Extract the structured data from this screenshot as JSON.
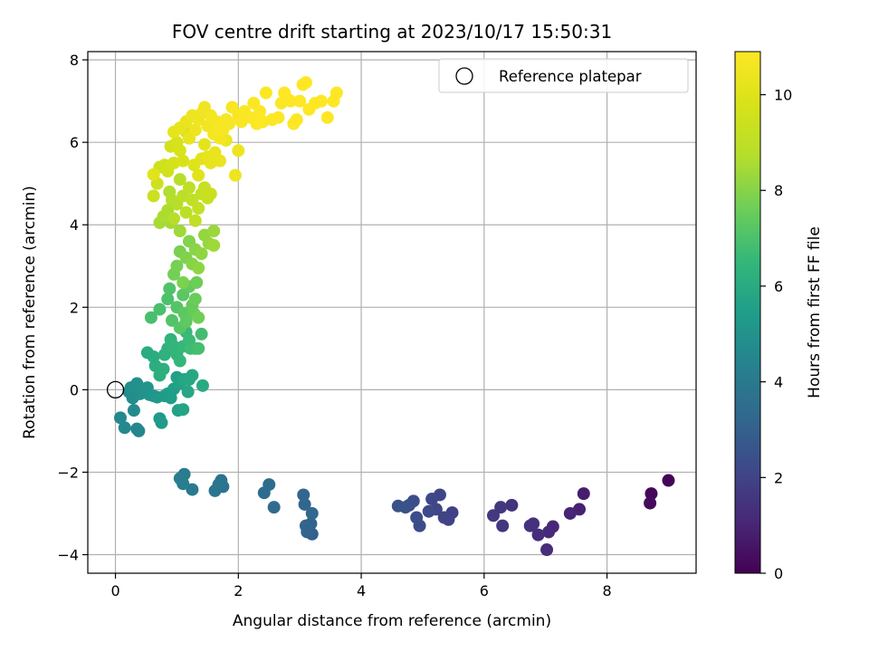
{
  "chart_data": {
    "type": "scatter",
    "title": "FOV centre drift starting at 2023/10/17 15:50:31",
    "xlabel": "Angular distance from reference (arcmin)",
    "ylabel": "Rotation from reference (arcmin)",
    "xlim": [
      -0.45,
      9.45
    ],
    "ylim": [
      -4.45,
      8.2
    ],
    "xticks": [
      0,
      2,
      4,
      6,
      8
    ],
    "yticks": [
      -4,
      -2,
      0,
      2,
      4,
      6,
      8
    ],
    "grid": true,
    "legend": {
      "position": "top-right",
      "entries": [
        "Reference platepar"
      ]
    },
    "reference_point": {
      "x": 0,
      "y": 0,
      "label": "Reference platepar"
    },
    "colorbar": {
      "label": "Hours from first FF file",
      "range": [
        0,
        10.9
      ],
      "ticks": [
        0,
        2,
        4,
        6,
        8,
        10
      ],
      "colormap": "viridis"
    },
    "series": [
      {
        "points": [
          [
            9.0,
            -2.2,
            0.1
          ],
          [
            8.72,
            -2.52,
            0.2
          ],
          [
            8.7,
            -2.75,
            0.3
          ],
          [
            7.62,
            -2.52,
            0.8
          ],
          [
            7.55,
            -2.9,
            0.9
          ],
          [
            7.4,
            -3.0,
            1.0
          ],
          [
            7.12,
            -3.32,
            1.1
          ],
          [
            7.05,
            -3.45,
            1.2
          ],
          [
            7.02,
            -3.88,
            1.25
          ],
          [
            6.88,
            -3.52,
            1.3
          ],
          [
            6.8,
            -3.25,
            1.35
          ],
          [
            6.75,
            -3.3,
            1.4
          ],
          [
            6.45,
            -2.8,
            1.5
          ],
          [
            6.3,
            -3.3,
            1.55
          ],
          [
            6.27,
            -2.85,
            1.6
          ],
          [
            6.15,
            -3.05,
            1.65
          ],
          [
            5.48,
            -2.98,
            1.9
          ],
          [
            5.42,
            -3.15,
            1.95
          ],
          [
            5.35,
            -3.1,
            2.0
          ],
          [
            5.28,
            -2.55,
            2.05
          ],
          [
            5.22,
            -2.9,
            2.1
          ],
          [
            5.15,
            -2.65,
            2.15
          ],
          [
            5.1,
            -2.95,
            2.2
          ],
          [
            4.95,
            -3.3,
            2.25
          ],
          [
            4.9,
            -3.1,
            2.3
          ],
          [
            4.85,
            -2.7,
            2.35
          ],
          [
            4.78,
            -2.8,
            2.4
          ],
          [
            4.72,
            -2.85,
            2.45
          ],
          [
            4.6,
            -2.82,
            2.5
          ],
          [
            3.2,
            -3.5,
            3.0
          ],
          [
            3.18,
            -3.25,
            3.05
          ],
          [
            3.12,
            -3.45,
            3.1
          ],
          [
            3.1,
            -3.3,
            3.15
          ],
          [
            3.08,
            -2.78,
            3.2
          ],
          [
            3.06,
            -2.55,
            3.25
          ],
          [
            3.2,
            -3.0,
            3.3
          ],
          [
            2.58,
            -2.85,
            3.4
          ],
          [
            2.5,
            -2.3,
            3.45
          ],
          [
            2.42,
            -2.5,
            3.5
          ],
          [
            1.75,
            -2.35,
            3.7
          ],
          [
            1.72,
            -2.2,
            3.75
          ],
          [
            1.68,
            -2.3,
            3.8
          ],
          [
            1.62,
            -2.45,
            3.85
          ],
          [
            1.25,
            -2.42,
            4.0
          ],
          [
            1.12,
            -2.05,
            4.05
          ],
          [
            1.08,
            -2.2,
            4.1
          ],
          [
            1.05,
            -2.15,
            4.15
          ],
          [
            1.1,
            -2.28,
            4.2
          ],
          [
            0.38,
            -1.0,
            4.5
          ],
          [
            0.35,
            -0.95,
            4.55
          ],
          [
            0.15,
            -0.92,
            4.6
          ],
          [
            0.08,
            -0.68,
            4.65
          ],
          [
            0.3,
            -0.5,
            4.7
          ],
          [
            0.28,
            -0.2,
            4.75
          ],
          [
            0.22,
            -0.05,
            4.8
          ],
          [
            0.25,
            0.05,
            4.85
          ],
          [
            0.35,
            0.15,
            4.9
          ],
          [
            0.4,
            -0.1,
            4.95
          ],
          [
            0.45,
            0.02,
            5.0
          ],
          [
            0.52,
            0.05,
            5.05
          ],
          [
            0.55,
            -0.12,
            5.1
          ],
          [
            0.62,
            -0.15,
            5.15
          ],
          [
            0.68,
            -0.18,
            5.2
          ],
          [
            0.72,
            -0.7,
            5.25
          ],
          [
            0.75,
            -0.8,
            5.3
          ],
          [
            0.8,
            -0.15,
            5.35
          ],
          [
            0.85,
            -0.1,
            5.4
          ],
          [
            0.9,
            -0.2,
            5.45
          ],
          [
            0.95,
            0.02,
            5.5
          ],
          [
            1.0,
            0.3,
            5.55
          ],
          [
            1.02,
            -0.5,
            5.6
          ],
          [
            1.05,
            0.15,
            5.65
          ],
          [
            1.1,
            -0.48,
            5.7
          ],
          [
            1.12,
            0.25,
            5.75
          ],
          [
            1.18,
            -0.05,
            5.8
          ],
          [
            1.2,
            0.25,
            5.85
          ],
          [
            1.25,
            0.35,
            5.9
          ],
          [
            1.42,
            0.1,
            5.95
          ],
          [
            0.52,
            0.9,
            6.0
          ],
          [
            0.62,
            0.8,
            6.05
          ],
          [
            0.65,
            0.58,
            6.1
          ],
          [
            0.72,
            0.35,
            6.15
          ],
          [
            0.78,
            0.5,
            6.2
          ],
          [
            0.8,
            0.85,
            6.25
          ],
          [
            0.85,
            1.0,
            6.3
          ],
          [
            0.9,
            1.22,
            6.35
          ],
          [
            0.95,
            1.05,
            6.4
          ],
          [
            1.0,
            0.85,
            6.45
          ],
          [
            1.05,
            0.7,
            6.5
          ],
          [
            1.1,
            1.05,
            6.55
          ],
          [
            1.15,
            1.4,
            6.6
          ],
          [
            1.2,
            1.2,
            6.65
          ],
          [
            1.22,
            1.0,
            6.7
          ],
          [
            1.3,
            1.0,
            6.75
          ],
          [
            1.4,
            1.35,
            6.8
          ],
          [
            1.35,
            1.0,
            6.85
          ],
          [
            0.58,
            1.75,
            6.9
          ],
          [
            0.72,
            1.95,
            6.95
          ],
          [
            0.85,
            2.2,
            7.0
          ],
          [
            0.88,
            2.45,
            7.05
          ],
          [
            0.92,
            1.68,
            7.1
          ],
          [
            1.0,
            2.0,
            7.15
          ],
          [
            1.05,
            1.5,
            7.2
          ],
          [
            1.1,
            2.3,
            7.25
          ],
          [
            1.12,
            1.85,
            7.3
          ],
          [
            1.15,
            1.65,
            7.35
          ],
          [
            1.2,
            2.5,
            7.4
          ],
          [
            1.25,
            2.05,
            7.45
          ],
          [
            1.28,
            1.85,
            7.5
          ],
          [
            1.3,
            2.2,
            7.55
          ],
          [
            1.32,
            2.6,
            7.6
          ],
          [
            1.35,
            1.75,
            7.65
          ],
          [
            0.95,
            2.8,
            7.7
          ],
          [
            1.0,
            3.0,
            7.75
          ],
          [
            1.05,
            3.35,
            7.8
          ],
          [
            1.1,
            2.6,
            7.85
          ],
          [
            1.15,
            3.2,
            7.9
          ],
          [
            1.2,
            3.6,
            7.95
          ],
          [
            1.25,
            3.05,
            8.0
          ],
          [
            1.3,
            3.4,
            8.05
          ],
          [
            1.35,
            2.95,
            8.1
          ],
          [
            1.4,
            3.3,
            8.15
          ],
          [
            1.45,
            3.75,
            8.2
          ],
          [
            1.52,
            3.55,
            8.25
          ],
          [
            1.6,
            3.85,
            8.3
          ],
          [
            1.6,
            3.5,
            8.35
          ],
          [
            1.05,
            3.85,
            8.4
          ],
          [
            0.9,
            4.05,
            8.45
          ],
          [
            0.72,
            4.05,
            8.5
          ],
          [
            0.78,
            4.2,
            8.55
          ],
          [
            0.85,
            4.35,
            8.6
          ],
          [
            0.88,
            4.8,
            8.65
          ],
          [
            0.92,
            4.6,
            8.7
          ],
          [
            0.95,
            4.15,
            8.75
          ],
          [
            1.0,
            4.5,
            8.8
          ],
          [
            1.05,
            5.1,
            8.85
          ],
          [
            1.1,
            4.7,
            8.9
          ],
          [
            1.15,
            4.3,
            8.95
          ],
          [
            1.2,
            4.9,
            9.0
          ],
          [
            1.25,
            4.6,
            9.05
          ],
          [
            1.3,
            4.1,
            9.1
          ],
          [
            1.35,
            4.4,
            9.15
          ],
          [
            1.4,
            4.75,
            9.2
          ],
          [
            1.45,
            4.9,
            9.25
          ],
          [
            1.5,
            4.65,
            9.3
          ],
          [
            1.55,
            4.75,
            9.35
          ],
          [
            0.62,
            4.7,
            9.4
          ],
          [
            0.68,
            5.0,
            9.45
          ],
          [
            0.72,
            5.4,
            9.5
          ],
          [
            0.8,
            5.45,
            9.55
          ],
          [
            0.85,
            5.3,
            9.6
          ],
          [
            0.9,
            5.9,
            9.65
          ],
          [
            0.95,
            5.5,
            9.7
          ],
          [
            1.0,
            6.0,
            9.75
          ],
          [
            1.05,
            5.8,
            9.8
          ],
          [
            1.1,
            5.55,
            9.85
          ],
          [
            1.15,
            6.25,
            9.9
          ],
          [
            1.2,
            6.1,
            9.95
          ],
          [
            1.28,
            5.45,
            10.0
          ],
          [
            1.35,
            5.2,
            10.05
          ],
          [
            1.4,
            5.6,
            10.1
          ],
          [
            1.45,
            5.95,
            10.15
          ],
          [
            1.5,
            5.65,
            10.2
          ],
          [
            1.55,
            5.5,
            10.25
          ],
          [
            1.62,
            5.75,
            10.3
          ],
          [
            1.7,
            5.55,
            10.35
          ],
          [
            1.8,
            6.05,
            10.4
          ],
          [
            1.95,
            5.2,
            10.42
          ],
          [
            2.0,
            5.8,
            10.45
          ],
          [
            0.62,
            5.22,
            10.1
          ],
          [
            0.95,
            6.25,
            10.2
          ],
          [
            1.05,
            6.35,
            10.25
          ],
          [
            1.15,
            6.5,
            10.3
          ],
          [
            1.2,
            6.1,
            10.35
          ],
          [
            1.25,
            6.65,
            10.4
          ],
          [
            1.3,
            6.3,
            10.45
          ],
          [
            1.35,
            6.55,
            10.5
          ],
          [
            1.4,
            6.7,
            10.52
          ],
          [
            1.45,
            6.85,
            10.55
          ],
          [
            1.5,
            6.4,
            10.58
          ],
          [
            1.55,
            6.65,
            10.6
          ],
          [
            1.6,
            6.2,
            10.62
          ],
          [
            1.65,
            6.5,
            10.64
          ],
          [
            1.7,
            6.1,
            10.66
          ],
          [
            1.75,
            6.3,
            10.68
          ],
          [
            1.8,
            6.55,
            10.7
          ],
          [
            1.85,
            6.45,
            10.72
          ],
          [
            1.9,
            6.85,
            10.74
          ],
          [
            2.0,
            6.65,
            10.76
          ],
          [
            2.05,
            6.5,
            10.78
          ],
          [
            2.1,
            6.75,
            10.8
          ],
          [
            2.2,
            6.6,
            10.82
          ],
          [
            2.3,
            6.45,
            10.84
          ],
          [
            2.4,
            6.5,
            10.85
          ],
          [
            2.45,
            7.2,
            10.86
          ],
          [
            2.55,
            6.55,
            10.87
          ],
          [
            2.65,
            6.6,
            10.88
          ],
          [
            2.7,
            6.95,
            10.88
          ],
          [
            2.75,
            7.2,
            10.89
          ],
          [
            2.8,
            7.05,
            10.89
          ],
          [
            2.85,
            7.0,
            10.9
          ],
          [
            2.9,
            6.45,
            10.9
          ],
          [
            2.95,
            6.55,
            10.9
          ],
          [
            3.0,
            7.0,
            10.9
          ],
          [
            3.05,
            7.4,
            10.9
          ],
          [
            3.1,
            7.45,
            10.9
          ],
          [
            3.15,
            6.8,
            10.9
          ],
          [
            3.25,
            6.95,
            10.9
          ],
          [
            3.35,
            7.0,
            10.9
          ],
          [
            3.45,
            6.6,
            10.9
          ],
          [
            3.55,
            7.0,
            10.9
          ],
          [
            3.6,
            7.2,
            10.9
          ],
          [
            2.25,
            6.95,
            10.85
          ],
          [
            2.35,
            6.75,
            10.85
          ]
        ]
      }
    ]
  }
}
